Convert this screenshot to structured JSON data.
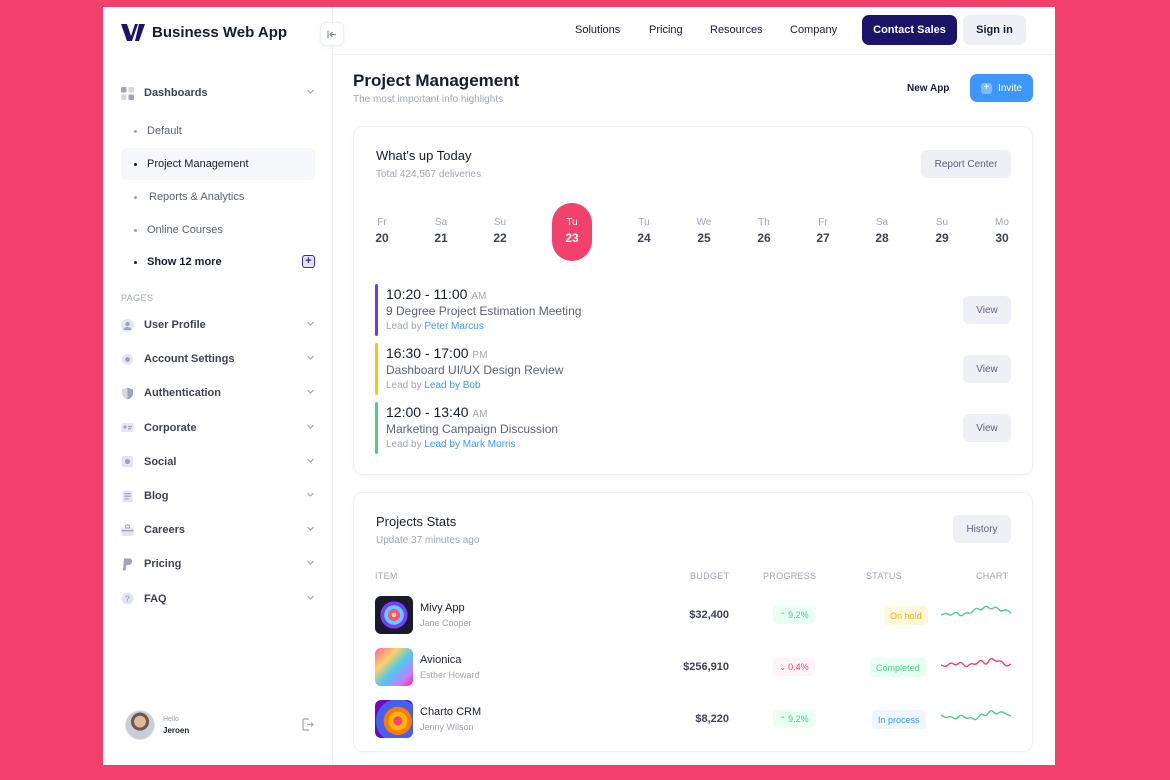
{
  "brand": {
    "name": "Business Web App",
    "color": "#1c1469"
  },
  "sidebar": {
    "dashboards": {
      "label": "Dashboards",
      "icon": "dashboard-grid-icon"
    },
    "sub_items": [
      {
        "label": "Default"
      },
      {
        "label": "Project Management",
        "active": true
      },
      {
        "label": "Reports & Analytics"
      },
      {
        "label": "Online Courses"
      },
      {
        "label": "Show 12 more"
      }
    ],
    "section_label": "PAGES",
    "pages": [
      {
        "label": "User Profile",
        "icon": "user-icon"
      },
      {
        "label": "Account Settings",
        "icon": "gear-icon"
      },
      {
        "label": "Authentication",
        "icon": "shield-icon"
      },
      {
        "label": "Corporate",
        "icon": "id-card-icon"
      },
      {
        "label": "Social",
        "icon": "social-icon"
      },
      {
        "label": "Blog",
        "icon": "document-icon"
      },
      {
        "label": "Careers",
        "icon": "briefcase-icon"
      },
      {
        "label": "Pricing",
        "icon": "paypal-icon"
      },
      {
        "label": "FAQ",
        "icon": "question-icon"
      }
    ],
    "user": {
      "greeting": "Hello",
      "name": "Jeroen"
    }
  },
  "header": {
    "menu": [
      "Solutions",
      "Pricing",
      "Resources",
      "Company"
    ],
    "contact_label": "Contact Sales",
    "signin_label": "Sign in"
  },
  "page": {
    "title": "Project Management",
    "subtitle": "The most important info highlights",
    "new_app_label": "New App",
    "invite_label": "Invite"
  },
  "today": {
    "title": "What's up Today",
    "subtitle": "Total 424,567 deliveries",
    "report_label": "Report Center",
    "days": [
      {
        "name": "Fr",
        "num": "20"
      },
      {
        "name": "Sa",
        "num": "21"
      },
      {
        "name": "Su",
        "num": "22"
      },
      {
        "name": "Tu",
        "num": "23",
        "active": true
      },
      {
        "name": "Tu",
        "num": "24"
      },
      {
        "name": "We",
        "num": "25"
      },
      {
        "name": "Th",
        "num": "26"
      },
      {
        "name": "Fr",
        "num": "27"
      },
      {
        "name": "Sa",
        "num": "28"
      },
      {
        "name": "Su",
        "num": "29"
      },
      {
        "name": "Mo",
        "num": "30"
      }
    ],
    "events": [
      {
        "time": "10:20 - 11:00",
        "ampm": "AM",
        "title": "9 Degree Project Estimation Meeting",
        "lead_prefix": "Lead by",
        "lead_name": "Peter Marcus",
        "color": "#7239ea",
        "view_label": "View"
      },
      {
        "time": "16:30 - 17:00",
        "ampm": "PM",
        "title": "Dashboard UI/UX Design Review",
        "lead_prefix": "Lead by",
        "lead_name": "Lead by Bob",
        "color": "#ffc700",
        "view_label": "View"
      },
      {
        "time": "12:00 - 13:40",
        "ampm": "AM",
        "title": "Marketing Campaign Discussion",
        "lead_prefix": "Lead by",
        "lead_name": "Lead by Mark Morris",
        "color": "#50cd89",
        "view_label": "View"
      }
    ]
  },
  "stats": {
    "title": "Projects Stats",
    "subtitle": "Update 37 minutes ago",
    "history_label": "History",
    "columns": [
      "ITEM",
      "BUDGET",
      "PROGRESS",
      "STATUS",
      "CHART"
    ],
    "rows": [
      {
        "name": "Mivy App",
        "owner": "Jane Cooper",
        "budget": "$32,400",
        "progress": "9.2%",
        "trend": "up",
        "status": "On hold",
        "status_bg": "#fff8dd",
        "status_fg": "#f6b100",
        "chart_color": "#50cd89"
      },
      {
        "name": "Avionica",
        "owner": "Esther Howard",
        "budget": "$256,910",
        "progress": "0.4%",
        "trend": "down",
        "status": "Completed",
        "status_bg": "#e8fff3",
        "status_fg": "#50cd89",
        "chart_color": "#f1416c"
      },
      {
        "name": "Charto CRM",
        "owner": "Jenny Wilson",
        "budget": "$8,220",
        "progress": "9.2%",
        "trend": "up",
        "status": "In process",
        "status_bg": "#eef6ff",
        "status_fg": "#3e97ff",
        "chart_color": "#50cd89"
      }
    ]
  }
}
